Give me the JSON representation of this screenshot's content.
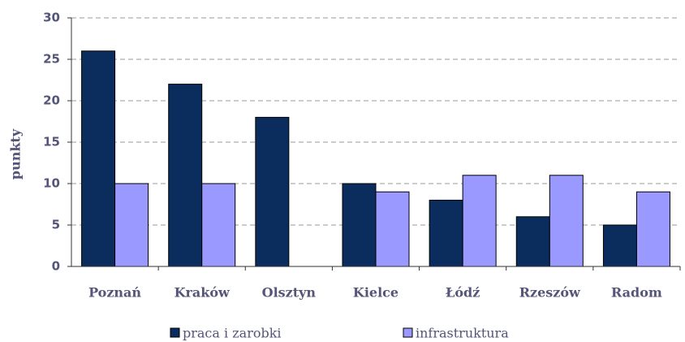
{
  "chart_data": {
    "type": "bar",
    "y_label": "punkty",
    "categories": [
      "Poznań",
      "Kraków",
      "Olsztyn",
      "Kielce",
      "Łódź",
      "Rzeszów",
      "Radom"
    ],
    "series": [
      {
        "name": "praca i zarobki",
        "color": "#0b2d5e",
        "values": [
          26,
          22,
          18,
          10,
          8,
          6,
          5
        ]
      },
      {
        "name": "infrastruktura",
        "color": "#9999ff",
        "values": [
          10,
          10,
          0,
          9,
          11,
          11,
          9
        ]
      }
    ],
    "ylim": [
      0,
      30
    ],
    "yticks": [
      0,
      5,
      10,
      15,
      20,
      25,
      30
    ],
    "grid": true,
    "legend": "bottom"
  }
}
